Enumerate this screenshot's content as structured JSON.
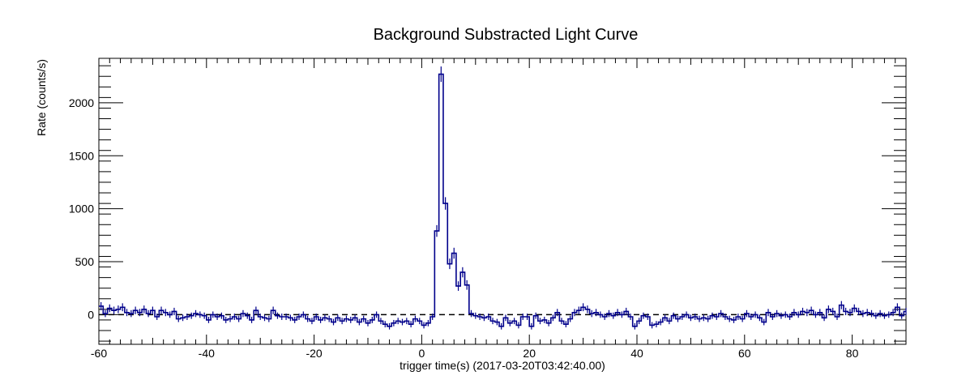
{
  "chart_data": {
    "type": "line",
    "style": "step histogram with error bars",
    "title": "Background Substracted Light Curve",
    "xlabel": "trigger time(s) (2017-03-20T03:42:40.00)",
    "ylabel": "Rate (counts/s)",
    "xlim": [
      -60,
      90
    ],
    "ylim": [
      -280,
      2420
    ],
    "x_ticks": [
      -60,
      -40,
      -20,
      0,
      20,
      40,
      60,
      80
    ],
    "y_ticks": [
      0,
      500,
      1000,
      1500,
      2000
    ],
    "grid": false,
    "legend": "none",
    "line_color": "#00008b",
    "reference_line": {
      "y": 0,
      "style": "dashed",
      "color": "#000000"
    },
    "bin_width": 0.8,
    "series": [
      {
        "x": [
          -60,
          -59.2,
          -58.4,
          -57.6,
          -56.8,
          -56,
          -55.2,
          -54.4,
          -53.6,
          -52.8,
          -52,
          -51.2,
          -50.4,
          -49.6,
          -48.8,
          -48,
          -47.2,
          -46.4,
          -45.6,
          -44.8,
          -44,
          -43.2,
          -42.4,
          -41.6,
          -40.8,
          -40,
          -39.2,
          -38.4,
          -37.6,
          -36.8,
          -36,
          -35.2,
          -34.4,
          -33.6,
          -32.8,
          -32,
          -31.2,
          -30.4,
          -29.6,
          -28.8,
          -28,
          -27.2,
          -26.4,
          -25.6,
          -24.8,
          -24,
          -23.2,
          -22.4,
          -21.6,
          -20.8,
          -20,
          -19.2,
          -18.4,
          -17.6,
          -16.8,
          -16,
          -15.2,
          -14.4,
          -13.6,
          -12.8,
          -12,
          -11.2,
          -10.4,
          -9.6,
          -8.8,
          -8,
          -7.2,
          -6.4,
          -5.6,
          -4.8,
          -4,
          -3.2,
          -2.4,
          -1.6,
          -0.8,
          0,
          0.8,
          1.6,
          2.4,
          3.2,
          4,
          4.8,
          5.6,
          6.4,
          7.2,
          8,
          8.8,
          9.6,
          10.4,
          11.2,
          12,
          12.8,
          13.6,
          14.4,
          15.2,
          16,
          16.8,
          17.6,
          18.4,
          19.2,
          20,
          20.8,
          21.6,
          22.4,
          23.2,
          24,
          24.8,
          25.6,
          26.4,
          27.2,
          28,
          28.8,
          29.6,
          30.4,
          31.2,
          32,
          32.8,
          33.6,
          34.4,
          35.2,
          36,
          36.8,
          37.6,
          38.4,
          39.2,
          40,
          40.8,
          41.6,
          42.4,
          43.2,
          44,
          44.8,
          45.6,
          46.4,
          47.2,
          48,
          48.8,
          49.6,
          50.4,
          51.2,
          52,
          52.8,
          53.6,
          54.4,
          55.2,
          56,
          56.8,
          57.6,
          58.4,
          59.2,
          60,
          60.8,
          61.6,
          62.4,
          63.2,
          64,
          64.8,
          65.6,
          66.4,
          67.2,
          68,
          68.8,
          69.6,
          70.4,
          71.2,
          72,
          72.8,
          73.6,
          74.4,
          75.2,
          76,
          76.8,
          77.6,
          78.4,
          79.2,
          80,
          80.8,
          81.6,
          82.4,
          83.2,
          84,
          84.8,
          85.6,
          86.4,
          87.2,
          88,
          88.8,
          89.6
        ],
        "values": [
          80,
          10,
          60,
          40,
          50,
          70,
          20,
          10,
          40,
          20,
          50,
          10,
          40,
          -20,
          40,
          20,
          0,
          30,
          -40,
          -30,
          -20,
          -10,
          10,
          0,
          -10,
          -50,
          0,
          -20,
          -10,
          -50,
          -40,
          -20,
          -40,
          10,
          -10,
          -50,
          40,
          -20,
          -30,
          -40,
          40,
          -10,
          -20,
          -20,
          -30,
          -50,
          -20,
          0,
          -40,
          -60,
          -20,
          -50,
          -30,
          -40,
          -70,
          -30,
          -60,
          -40,
          -50,
          -30,
          -70,
          -40,
          -80,
          -50,
          0,
          -60,
          -90,
          -110,
          -80,
          -60,
          -70,
          -60,
          -90,
          -40,
          -60,
          -100,
          -80,
          -20,
          790,
          2270,
          1050,
          480,
          580,
          270,
          400,
          280,
          10,
          -10,
          -20,
          -30,
          -20,
          -60,
          -70,
          -110,
          -30,
          -80,
          -60,
          -100,
          -20,
          -20,
          -110,
          -10,
          -60,
          -50,
          -80,
          -30,
          20,
          -60,
          -90,
          -40,
          20,
          40,
          70,
          50,
          10,
          20,
          0,
          -20,
          10,
          -10,
          20,
          0,
          30,
          -20,
          -110,
          -60,
          -10,
          -20,
          -100,
          -90,
          -70,
          -30,
          -60,
          -10,
          -40,
          -20,
          0,
          -30,
          -20,
          -40,
          -30,
          -40,
          -10,
          -20,
          10,
          -20,
          -40,
          -50,
          -20,
          -40,
          10,
          -20,
          0,
          -30,
          -70,
          20,
          -20,
          10,
          -10,
          0,
          -20,
          20,
          0,
          30,
          20,
          40,
          0,
          20,
          -30,
          50,
          30,
          -20,
          90,
          30,
          20,
          60,
          30,
          10,
          20,
          10,
          -10,
          10,
          -10,
          0,
          20,
          70,
          -10,
          30
        ]
      }
    ]
  }
}
